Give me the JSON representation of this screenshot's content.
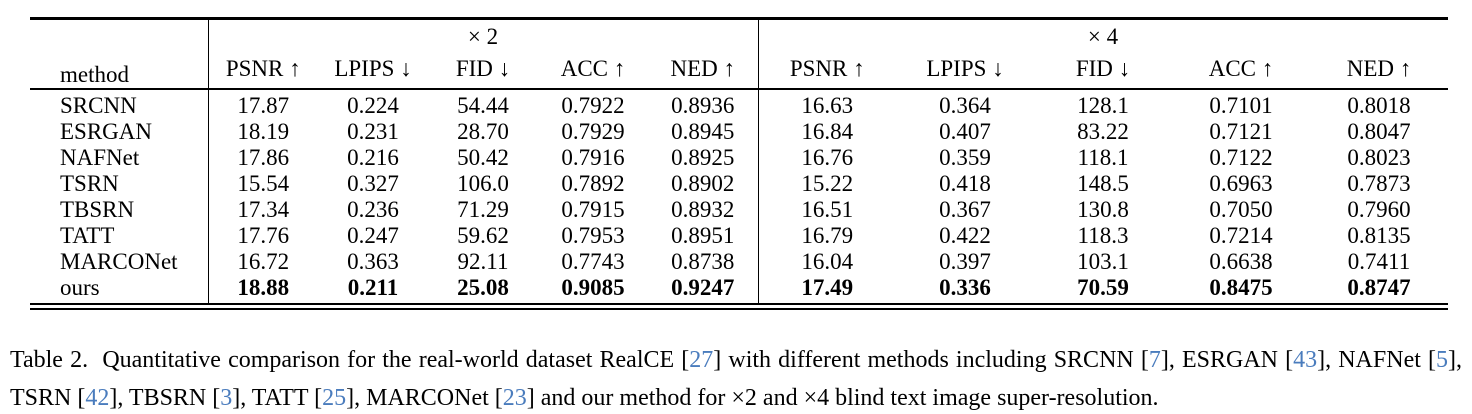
{
  "table": {
    "header": {
      "method_label": "method",
      "group2_label": "× 2",
      "group4_label": "× 4",
      "metrics": [
        "PSNR ↑",
        "LPIPS ↓",
        "FID ↓",
        "ACC ↑",
        "NED ↑"
      ]
    },
    "rows": [
      {
        "method": "SRCNN",
        "bold": false,
        "x2": [
          "17.87",
          "0.224",
          "54.44",
          "0.7922",
          "0.8936"
        ],
        "x4": [
          "16.63",
          "0.364",
          "128.1",
          "0.7101",
          "0.8018"
        ]
      },
      {
        "method": "ESRGAN",
        "bold": false,
        "x2": [
          "18.19",
          "0.231",
          "28.70",
          "0.7929",
          "0.8945"
        ],
        "x4": [
          "16.84",
          "0.407",
          "83.22",
          "0.7121",
          "0.8047"
        ]
      },
      {
        "method": "NAFNet",
        "bold": false,
        "x2": [
          "17.86",
          "0.216",
          "50.42",
          "0.7916",
          "0.8925"
        ],
        "x4": [
          "16.76",
          "0.359",
          "118.1",
          "0.7122",
          "0.8023"
        ]
      },
      {
        "method": "TSRN",
        "bold": false,
        "x2": [
          "15.54",
          "0.327",
          "106.0",
          "0.7892",
          "0.8902"
        ],
        "x4": [
          "15.22",
          "0.418",
          "148.5",
          "0.6963",
          "0.7873"
        ]
      },
      {
        "method": "TBSRN",
        "bold": false,
        "x2": [
          "17.34",
          "0.236",
          "71.29",
          "0.7915",
          "0.8932"
        ],
        "x4": [
          "16.51",
          "0.367",
          "130.8",
          "0.7050",
          "0.7960"
        ]
      },
      {
        "method": "TATT",
        "bold": false,
        "x2": [
          "17.76",
          "0.247",
          "59.62",
          "0.7953",
          "0.8951"
        ],
        "x4": [
          "16.79",
          "0.422",
          "118.3",
          "0.7214",
          "0.8135"
        ]
      },
      {
        "method": "MARCONet",
        "bold": false,
        "x2": [
          "16.72",
          "0.363",
          "92.11",
          "0.7743",
          "0.8738"
        ],
        "x4": [
          "16.04",
          "0.397",
          "103.1",
          "0.6638",
          "0.7411"
        ]
      },
      {
        "method": "ours",
        "bold": true,
        "x2": [
          "18.88",
          "0.211",
          "25.08",
          "0.9085",
          "0.9247"
        ],
        "x4": [
          "17.49",
          "0.336",
          "70.59",
          "0.8475",
          "0.8747"
        ]
      }
    ]
  },
  "caption": {
    "segments": [
      {
        "t": "Table 2.  Quantitative comparison for the real-world dataset RealCE ["
      },
      {
        "c": "27"
      },
      {
        "t": "] with different methods including SRCNN ["
      },
      {
        "c": "7"
      },
      {
        "t": "], ESRGAN ["
      },
      {
        "c": "43"
      },
      {
        "t": "], NAFNet ["
      },
      {
        "c": "5"
      },
      {
        "t": "], TSRN ["
      },
      {
        "c": "42"
      },
      {
        "t": "], TBSRN ["
      },
      {
        "c": "3"
      },
      {
        "t": "], TATT ["
      },
      {
        "c": "25"
      },
      {
        "t": "], MARCONet ["
      },
      {
        "c": "23"
      },
      {
        "t": "] and our method for ×2 and ×4 blind text image super-resolution."
      }
    ]
  },
  "colors": {
    "text": "#000000",
    "citation": "#4a7cbd",
    "background": "#ffffff"
  }
}
